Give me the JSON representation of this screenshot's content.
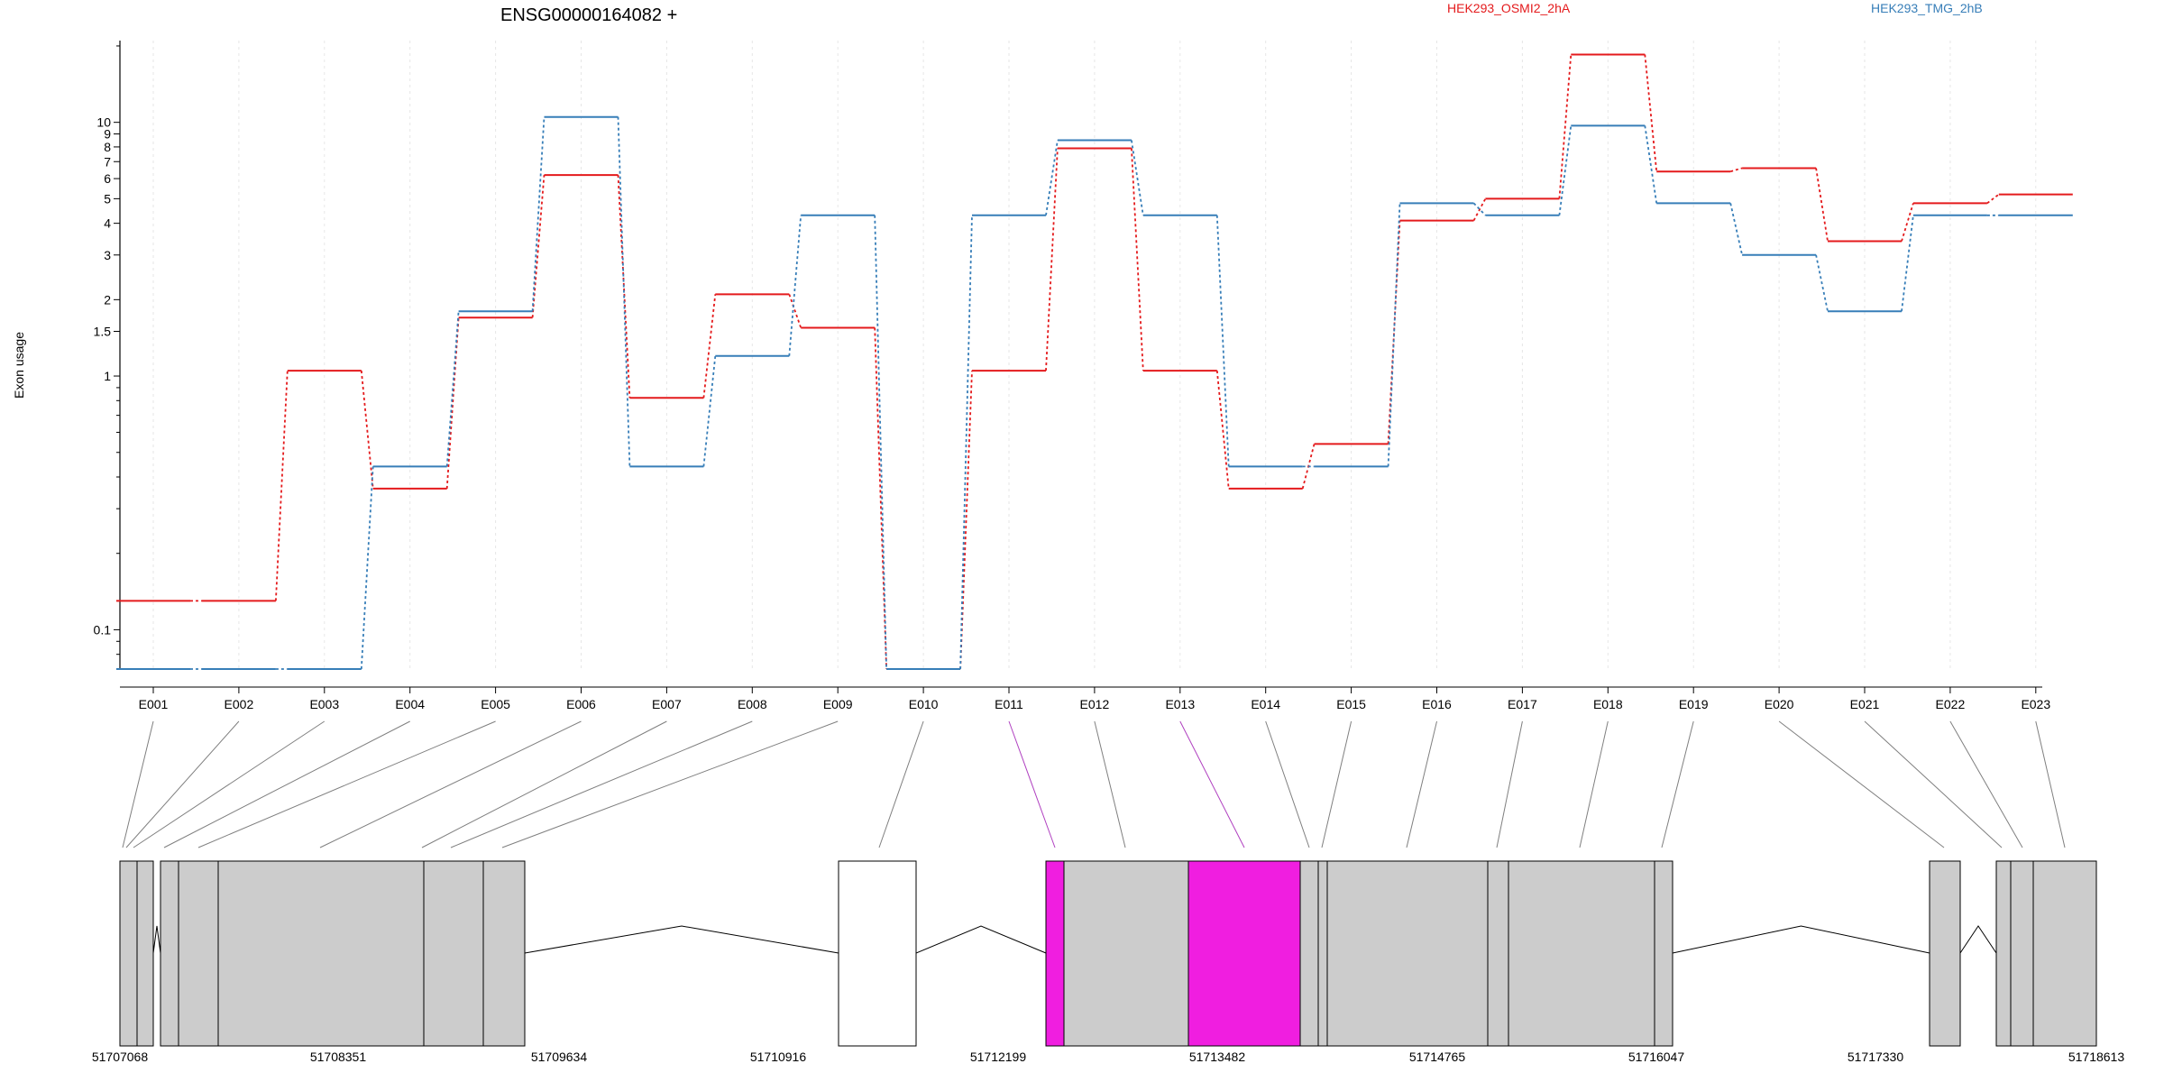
{
  "chart_data": {
    "type": "line",
    "title": "ENSG00000164082 +",
    "ylabel": "Exon usage",
    "xlabel": "",
    "y_scale": "log",
    "ylim": [
      0.07,
      21
    ],
    "y_ticks": [
      {
        "value": 0.1,
        "label": "0.1"
      },
      {
        "value": 1,
        "label": "1"
      },
      {
        "value": 1.5,
        "label": "1.5"
      },
      {
        "value": 2,
        "label": "2"
      },
      {
        "value": 3,
        "label": "3"
      },
      {
        "value": 4,
        "label": "4"
      },
      {
        "value": 5,
        "label": "5"
      },
      {
        "value": 6,
        "label": "6"
      },
      {
        "value": 7,
        "label": "7"
      },
      {
        "value": 8,
        "label": "8"
      },
      {
        "value": 9,
        "label": "9"
      },
      {
        "value": 10,
        "label": "10"
      }
    ],
    "categories": [
      "E001",
      "E002",
      "E003",
      "E004",
      "E005",
      "E006",
      "E007",
      "E008",
      "E009",
      "E010",
      "E011",
      "E012",
      "E013",
      "E014",
      "E015",
      "E016",
      "E017",
      "E018",
      "E019",
      "E020",
      "E021",
      "E022",
      "E023"
    ],
    "series": [
      {
        "name": "HEK293_OSMI2_2hA",
        "color": "#e41a1c",
        "values": [
          0.13,
          0.13,
          1.05,
          0.36,
          1.7,
          6.2,
          0.82,
          2.1,
          1.55,
          0.07,
          1.05,
          7.9,
          1.05,
          0.36,
          0.54,
          4.1,
          5.0,
          18.5,
          6.4,
          6.6,
          3.4,
          4.8,
          5.2
        ]
      },
      {
        "name": "HEK293_TMG_2hB",
        "color": "#377eb8",
        "values": [
          0.07,
          0.07,
          0.07,
          0.44,
          1.8,
          10.5,
          0.44,
          1.2,
          4.3,
          0.07,
          4.3,
          8.5,
          4.3,
          0.44,
          0.44,
          4.8,
          4.3,
          9.7,
          4.8,
          3.0,
          1.8,
          4.3,
          4.3
        ]
      }
    ],
    "grid": true,
    "legend_position": "top-right",
    "gene_model": {
      "coord_labels": [
        "51707068",
        "51708351",
        "51709634",
        "51710916",
        "51712199",
        "51713482",
        "51714765",
        "51716047",
        "51717330",
        "51718613"
      ],
      "highlight_color": "#f01ee0",
      "exon_fill": "#cccccc"
    }
  }
}
